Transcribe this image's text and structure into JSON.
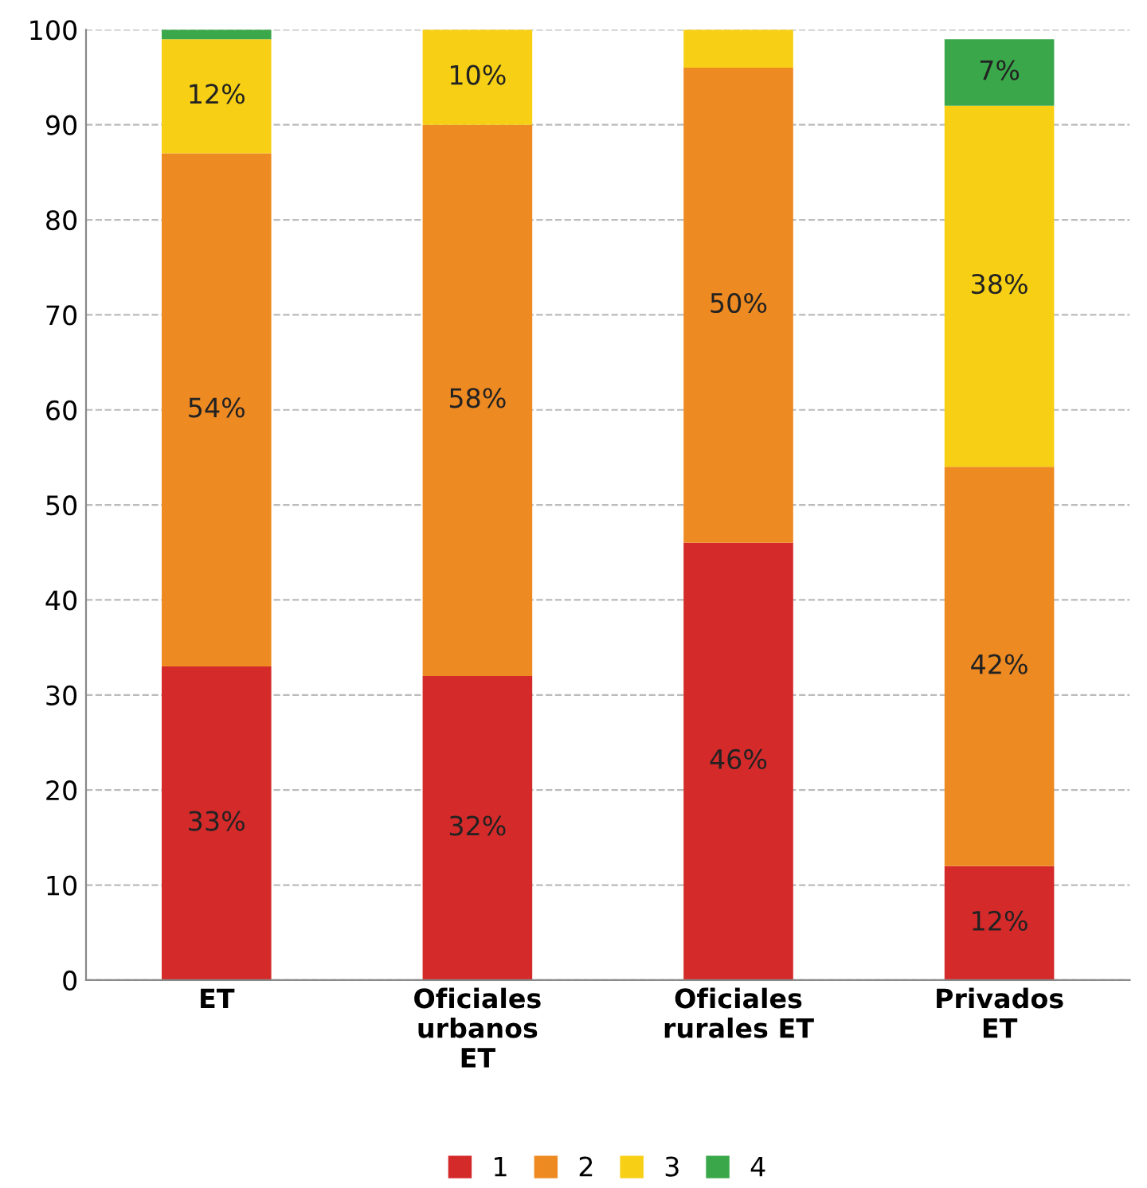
{
  "chart_data": {
    "type": "bar",
    "stacked": true,
    "categories": [
      "ET",
      "Oficiales\nurbanos\nET",
      "Oficiales\nrurales ET",
      "Privados\nET"
    ],
    "series": [
      {
        "name": "1",
        "color": "#d42a2a",
        "values": [
          33,
          32,
          46,
          12
        ],
        "value_labels": [
          "33%",
          "32%",
          "46%",
          "12%"
        ]
      },
      {
        "name": "2",
        "color": "#ee8a22",
        "values": [
          54,
          58,
          50,
          42
        ],
        "value_labels": [
          "54%",
          "58%",
          "50%",
          "42%"
        ]
      },
      {
        "name": "3",
        "color": "#f7d016",
        "values": [
          12,
          10,
          4,
          38
        ],
        "value_labels": [
          "12%",
          "10%",
          null,
          "38%"
        ]
      },
      {
        "name": "4",
        "color": "#3aa84a",
        "values": [
          1,
          0,
          0,
          7
        ],
        "value_labels": [
          null,
          null,
          null,
          "7%"
        ]
      }
    ],
    "ylim": [
      0,
      100
    ],
    "yticks": [
      0,
      10,
      20,
      30,
      40,
      50,
      60,
      70,
      80,
      90,
      100
    ],
    "grid": "y",
    "legend": "bottom"
  }
}
